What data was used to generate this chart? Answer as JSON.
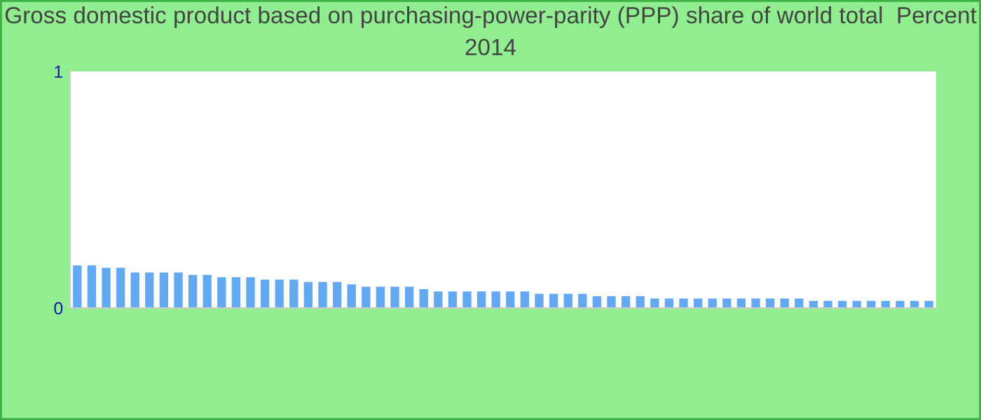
{
  "chart_data": {
    "type": "bar",
    "title": "Gross domestic product based on purchasing-power-parity (PPP) share of world total  Percent 2014",
    "categories": [
      null,
      null,
      null,
      null,
      null,
      null,
      null,
      null,
      null,
      null,
      null,
      null,
      null,
      null,
      null,
      null,
      null,
      null,
      null,
      null,
      null,
      null,
      null,
      null,
      null,
      null,
      null,
      null,
      null,
      null,
      null,
      null,
      null,
      null,
      null,
      null,
      null,
      null,
      null,
      null,
      null,
      null,
      null,
      null,
      null,
      null,
      null,
      null,
      null,
      null,
      null,
      null,
      null,
      null,
      null,
      null,
      null,
      null,
      null,
      null
    ],
    "values": [
      0.18,
      0.18,
      0.17,
      0.17,
      0.15,
      0.15,
      0.15,
      0.15,
      0.14,
      0.14,
      0.13,
      0.13,
      0.13,
      0.12,
      0.12,
      0.12,
      0.11,
      0.11,
      0.11,
      0.1,
      0.09,
      0.09,
      0.09,
      0.09,
      0.08,
      0.07,
      0.07,
      0.07,
      0.07,
      0.07,
      0.07,
      0.07,
      0.06,
      0.06,
      0.06,
      0.06,
      0.05,
      0.05,
      0.05,
      0.05,
      0.04,
      0.04,
      0.04,
      0.04,
      0.04,
      0.04,
      0.04,
      0.04,
      0.04,
      0.04,
      0.04,
      0.03,
      0.03,
      0.03,
      0.03,
      0.03,
      0.03,
      0.03,
      0.03,
      0.03
    ],
    "color": "#62a9f2",
    "ylim": [
      0,
      1
    ],
    "yticks": [
      0,
      1
    ],
    "grid": false
  }
}
